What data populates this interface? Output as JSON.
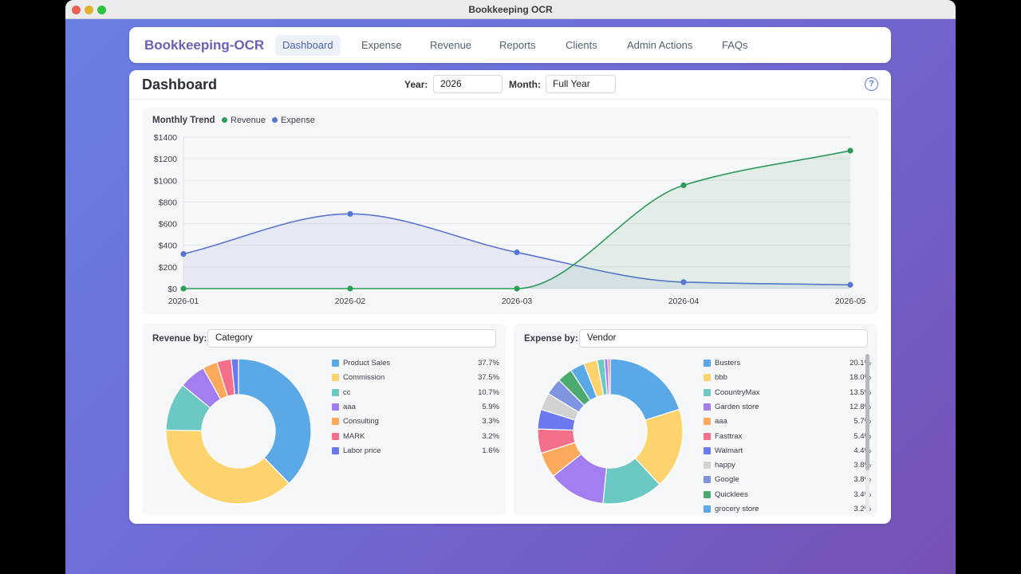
{
  "window": {
    "title": "Bookkeeping OCR"
  },
  "nav": {
    "brand": "Bookkeeping-OCR",
    "items": [
      {
        "label": "Dashboard",
        "active": true
      },
      {
        "label": "Expense"
      },
      {
        "label": "Revenue"
      },
      {
        "label": "Reports"
      },
      {
        "label": "Clients"
      },
      {
        "label": "Admin Actions"
      },
      {
        "label": "FAQs"
      }
    ]
  },
  "dashboard": {
    "title": "Dashboard",
    "year_label": "Year:",
    "year_value": "2026",
    "month_label": "Month:",
    "month_value": "Full Year",
    "help_icon": "?"
  },
  "trend": {
    "title": "Monthly Trend",
    "legend": [
      {
        "name": "Revenue",
        "color": "#2e9a5c"
      },
      {
        "name": "Expense",
        "color": "#5b74d0"
      }
    ]
  },
  "chart_data": {
    "type": "area",
    "x": [
      "2026-01",
      "2026-02",
      "2026-03",
      "2026-04",
      "2026-05"
    ],
    "yticks": [
      "$0",
      "$200",
      "$400",
      "$600",
      "$800",
      "$1000",
      "$1200",
      "$1400"
    ],
    "ylim": [
      0,
      1400
    ],
    "series": [
      {
        "name": "Revenue",
        "color": "#2e9a5c",
        "values": [
          0,
          0,
          0,
          955,
          1275
        ]
      },
      {
        "name": "Expense",
        "color": "#5b74d0",
        "values": [
          320,
          690,
          335,
          60,
          35
        ]
      }
    ],
    "grid": true,
    "legend_position": "top-left"
  },
  "revenue_pie": {
    "label": "Revenue by:",
    "select_value": "Category",
    "items": [
      {
        "name": "Product Sales",
        "pct": "37.7%",
        "value": 37.7,
        "color": "#5aa9e6"
      },
      {
        "name": "Commission",
        "pct": "37.5%",
        "value": 37.5,
        "color": "#fdd36e"
      },
      {
        "name": "cc",
        "pct": "10.7%",
        "value": 10.7,
        "color": "#6cc8c3"
      },
      {
        "name": "aaa",
        "pct": "5.9%",
        "value": 5.9,
        "color": "#a27ef0"
      },
      {
        "name": "Consulting",
        "pct": "3.3%",
        "value": 3.3,
        "color": "#fba95a"
      },
      {
        "name": "MARK",
        "pct": "3.2%",
        "value": 3.2,
        "color": "#f36f8a"
      },
      {
        "name": "Labor price",
        "pct": "1.6%",
        "value": 1.6,
        "color": "#6b78ee"
      }
    ]
  },
  "expense_pie": {
    "label": "Expense by:",
    "select_value": "Vendor",
    "items": [
      {
        "name": "Busters",
        "pct": "20.1%",
        "value": 20.1,
        "color": "#5aa9e6"
      },
      {
        "name": "bbb",
        "pct": "18.0%",
        "value": 18.0,
        "color": "#fdd36e"
      },
      {
        "name": "CoountryMax",
        "pct": "13.5%",
        "value": 13.5,
        "color": "#6cc8c3"
      },
      {
        "name": "Garden store",
        "pct": "12.8%",
        "value": 12.8,
        "color": "#a27ef0"
      },
      {
        "name": "aaa",
        "pct": "5.7%",
        "value": 5.7,
        "color": "#fba95a"
      },
      {
        "name": "Fasttrax",
        "pct": "5.4%",
        "value": 5.4,
        "color": "#f36f8a"
      },
      {
        "name": "Walmart",
        "pct": "4.4%",
        "value": 4.4,
        "color": "#6b78ee"
      },
      {
        "name": "happy",
        "pct": "3.8%",
        "value": 3.8,
        "color": "#d2d2d2"
      },
      {
        "name": "Google",
        "pct": "3.8%",
        "value": 3.8,
        "color": "#7f95e0"
      },
      {
        "name": "Quicklees",
        "pct": "3.4%",
        "value": 3.4,
        "color": "#4caa6f"
      },
      {
        "name": "grocery store",
        "pct": "3.2%",
        "value": 3.2,
        "color": "#5aa9e6"
      },
      {
        "name": "",
        "pct": "",
        "value": 3.0,
        "color": "#fdd36e"
      },
      {
        "name": "",
        "pct": "",
        "value": 1.6,
        "color": "#6cc8c3"
      },
      {
        "name": "",
        "pct": "",
        "value": 0.8,
        "color": "#a27ef0"
      },
      {
        "name": "",
        "pct": "",
        "value": 0.5,
        "color": "#f36f8a"
      }
    ]
  }
}
